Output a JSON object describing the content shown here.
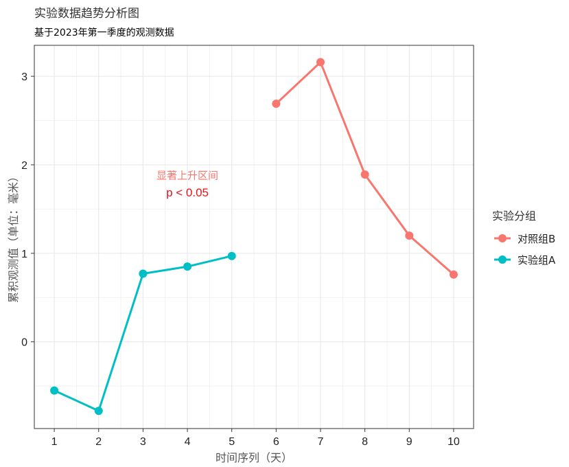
{
  "chart_data": {
    "type": "line",
    "title": "实验数据趋势分析图",
    "subtitle": "基于2023年第一季度的观测数据",
    "xlabel": "时间序列（天）",
    "ylabel": "累积观测值（单位：毫米）",
    "x_ticks": [
      "1",
      "2",
      "3",
      "4",
      "5",
      "6",
      "7",
      "8",
      "9",
      "10"
    ],
    "y_ticks": [
      "0",
      "1",
      "2",
      "3"
    ],
    "y_tick_values": [
      0,
      1,
      2,
      3
    ],
    "xlim": [
      0.55,
      10.45
    ],
    "ylim": [
      -0.98,
      3.35
    ],
    "grid": true,
    "legend": {
      "title": "实验分组",
      "placement": "right",
      "entries": [
        "对照组B",
        "实验组A"
      ]
    },
    "series": [
      {
        "name": "实验组A",
        "color": "#00BFC4",
        "x": [
          1,
          2,
          3,
          4,
          5
        ],
        "y": [
          -0.55,
          -0.78,
          0.77,
          0.85,
          0.97
        ]
      },
      {
        "name": "对照组B",
        "color": "#F8766D",
        "x": [
          6,
          7,
          8,
          9,
          10
        ],
        "y": [
          2.69,
          3.16,
          1.89,
          1.2,
          0.76
        ]
      }
    ],
    "annotations": [
      {
        "text": "显著上升区间",
        "x": 4,
        "y": 1.88,
        "color": "#F8766D"
      },
      {
        "text": "p < 0.05",
        "x": 4,
        "y": 1.68,
        "color": "#E8121B"
      }
    ]
  }
}
